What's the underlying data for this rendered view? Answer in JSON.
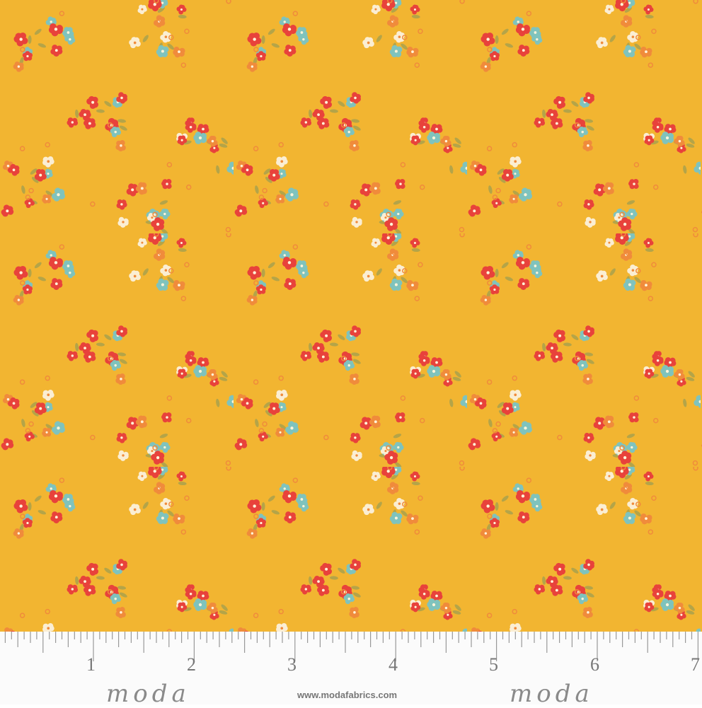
{
  "fabric": {
    "pattern": "small ditsy floral clusters",
    "colors": {
      "background": "#f2b531",
      "red_flower": "#e8423b",
      "teal_flower": "#7fc3bd",
      "cream_flower": "#fbeed3",
      "orange_flower": "#f08b3b",
      "leaf": "#b4a448"
    }
  },
  "ruler": {
    "unit": "inch",
    "labels": [
      "1",
      "2",
      "3",
      "4",
      "5",
      "6",
      "7"
    ],
    "brand_logo": "moda",
    "website": "www.modafabrics.com"
  }
}
